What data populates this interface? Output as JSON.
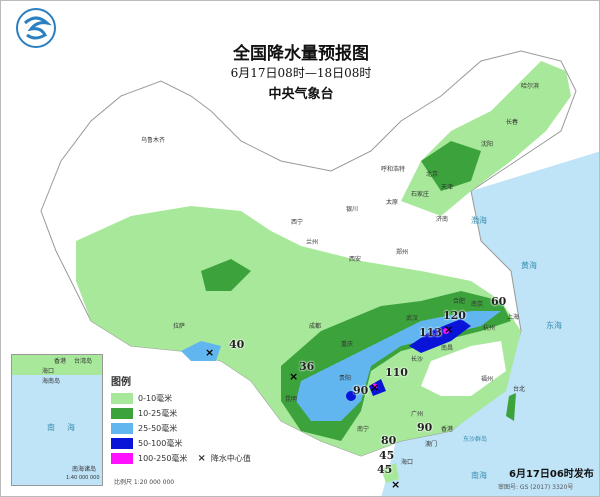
{
  "header": {
    "title": "全国降水量预报图",
    "period": "6月17日08时—18日08时",
    "agency": "中央气象台"
  },
  "legend": {
    "title": "图例",
    "items": [
      {
        "label": "0-10毫米",
        "color": "#a8e89a"
      },
      {
        "label": "10-25毫米",
        "color": "#3ca23c"
      },
      {
        "label": "25-50毫米",
        "color": "#62b6f0"
      },
      {
        "label": "50-100毫米",
        "color": "#0a14d8"
      },
      {
        "label": "100-250毫米",
        "color": "#ff10ff"
      }
    ],
    "center_marker": {
      "symbol": "×",
      "label": "降水中心值"
    },
    "scale": "比例尺  1:20 000 000"
  },
  "values": [
    "40",
    "36",
    "90",
    "110",
    "120",
    "113",
    "60",
    "90",
    "80",
    "45",
    "45"
  ],
  "places": [
    "乌鲁木齐",
    "哈尔滨",
    "长春",
    "沈阳",
    "呼和浩特",
    "北京",
    "天津",
    "太原",
    "石家庄",
    "济南",
    "西宁",
    "兰州",
    "银川",
    "西安",
    "郑州",
    "拉萨",
    "成都",
    "重庆",
    "武汉",
    "合肥",
    "南京",
    "上海",
    "杭州",
    "长沙",
    "南昌",
    "贵阳",
    "昆明",
    "南宁",
    "广州",
    "福州",
    "台北",
    "海口",
    "香港",
    "澳门"
  ],
  "seas": [
    "渤海",
    "黄海",
    "东海",
    "南海",
    "东沙群岛"
  ],
  "inset": {
    "places": [
      "香港",
      "台湾岛",
      "海口",
      "海南岛"
    ],
    "seas": [
      "南",
      "海"
    ],
    "label": "南海诸岛",
    "scale": "1:40 000 000"
  },
  "footer": {
    "release": "6月17日06时发布",
    "review_number": "审图号: GS (2017) 3320号"
  }
}
